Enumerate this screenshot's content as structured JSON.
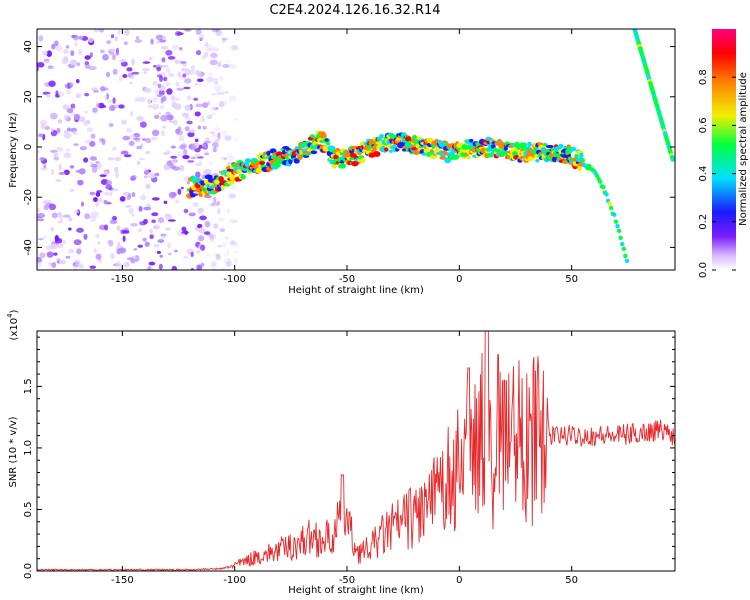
{
  "title": "C2E4.2024.126.16.32.R14",
  "chart_data": [
    {
      "type": "heatmap",
      "xlabel": "Height of straight line (km)",
      "ylabel": "Frequency (Hz)",
      "xlim": [
        -188,
        96
      ],
      "ylim": [
        -49,
        47
      ],
      "x_ticks": [
        -150,
        -100,
        -50,
        0,
        50
      ],
      "y_ticks": [
        -40,
        -20,
        0,
        20,
        40
      ],
      "colorbar": {
        "label": "Normalized spectral amplitude",
        "range": [
          0,
          1
        ],
        "ticks": [
          0.0,
          0.2,
          0.4,
          0.6,
          0.8
        ],
        "tick_labels": [
          "0.0",
          "0.2",
          "0.4",
          "0.6",
          "0.8"
        ],
        "colors": [
          "#ffffff",
          "#d8b8ff",
          "#7a1cff",
          "#1a1aff",
          "#00e0ff",
          "#00ff40",
          "#f0f000",
          "#ff8000",
          "#ff0000",
          "#ff0080"
        ]
      },
      "noise_region": {
        "x": [
          -188,
          -105
        ],
        "y": [
          -49,
          47
        ]
      },
      "ridge": {
        "x": [
          -120,
          -110,
          -100,
          -90,
          -80,
          -70,
          -62,
          -55,
          -45,
          -35,
          -25,
          -15,
          -5,
          5,
          15,
          25,
          35,
          42,
          48,
          55,
          60,
          65,
          70,
          75
        ],
        "y": [
          -16,
          -15,
          -10,
          -7,
          -4,
          -2,
          3,
          -5,
          -3,
          1,
          2,
          0,
          -2,
          -1,
          0,
          -2,
          -2,
          -2,
          -3,
          -6,
          -10,
          -18,
          -30,
          -47
        ]
      },
      "line_segment": {
        "x": [
          78,
          95
        ],
        "y": [
          47,
          -5
        ]
      }
    },
    {
      "type": "line",
      "xlabel": "Height of straight line (km)",
      "ylabel": "SNR (10 * v/v)",
      "multiplier_label": "(x10",
      "multiplier_exp": "4",
      "xlim": [
        -188,
        96
      ],
      "ylim": [
        0.0,
        1.95
      ],
      "x_ticks": [
        -150,
        -100,
        -50,
        0,
        50
      ],
      "y_ticks": [
        0.0,
        0.5,
        1.0,
        1.5
      ],
      "y_tick_labels": [
        "0.0",
        "0.5",
        "1.0",
        "1.5"
      ],
      "color": "#e8282a",
      "series": [
        {
          "x": [
            -188,
            -150,
            -120,
            -105,
            -100,
            -95,
            -90,
            -85,
            -80,
            -75,
            -70,
            -65,
            -60,
            -55,
            -52,
            -48,
            -45,
            -40,
            -35,
            -30,
            -25,
            -20,
            -15,
            -10,
            -5,
            0,
            5,
            10,
            12,
            15,
            20,
            25,
            30,
            35,
            40,
            45,
            50,
            60,
            70,
            80,
            90,
            96
          ],
          "y": [
            0.01,
            0.01,
            0.01,
            0.02,
            0.05,
            0.08,
            0.12,
            0.14,
            0.17,
            0.2,
            0.24,
            0.28,
            0.25,
            0.3,
            0.55,
            0.28,
            0.15,
            0.18,
            0.28,
            0.35,
            0.4,
            0.45,
            0.52,
            0.6,
            0.75,
            0.85,
            1.05,
            1.2,
            1.45,
            1.05,
            1.2,
            1.15,
            1.1,
            1.15,
            1.1,
            1.1,
            1.1,
            1.1,
            1.1,
            1.12,
            1.15,
            1.1
          ]
        }
      ]
    }
  ]
}
